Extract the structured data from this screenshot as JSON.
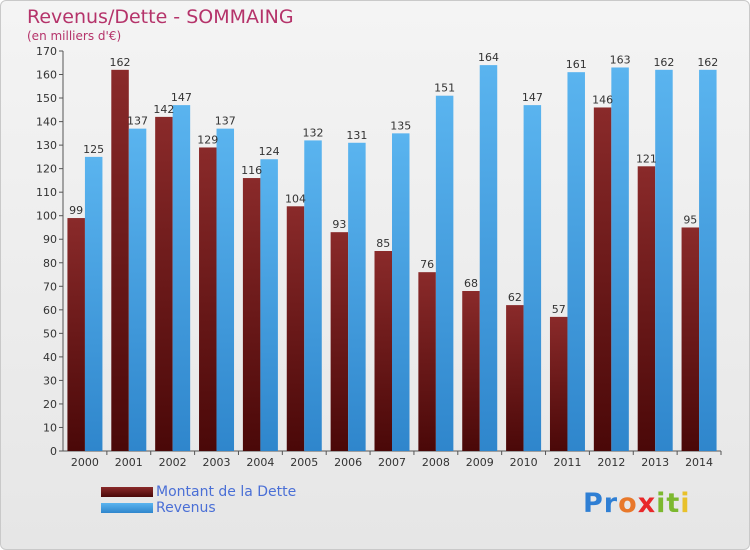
{
  "colors": {
    "title": "#b5336a",
    "axis": "#555555",
    "dette": "#7a1f1f",
    "revenus": "#49a6e8"
  },
  "chart_data": {
    "type": "bar",
    "title": "Revenus/Dette - SOMMAING",
    "subtitle": "(en milliers d'€)",
    "xlabel": "",
    "ylabel": "",
    "ylim": [
      0,
      170
    ],
    "yticks": [
      0,
      10,
      20,
      30,
      40,
      50,
      60,
      70,
      80,
      90,
      100,
      110,
      120,
      130,
      140,
      150,
      160,
      170
    ],
    "grid": false,
    "legend_position": "bottom-left",
    "categories": [
      "2000",
      "2001",
      "2002",
      "2003",
      "2004",
      "2005",
      "2006",
      "2007",
      "2008",
      "2009",
      "2010",
      "2011",
      "2012",
      "2013",
      "2014"
    ],
    "series": [
      {
        "name": "Montant de la Dette",
        "color": "#7a1f1f",
        "values": [
          99,
          162,
          142,
          129,
          116,
          104,
          93,
          85,
          76,
          68,
          62,
          57,
          146,
          121,
          95
        ]
      },
      {
        "name": "Revenus",
        "color": "#49a6e8",
        "values": [
          125,
          137,
          147,
          137,
          124,
          132,
          131,
          135,
          151,
          164,
          147,
          161,
          163,
          162,
          162
        ]
      }
    ]
  },
  "logo": {
    "letters": [
      "P",
      "r",
      "o",
      "x",
      "i",
      "t",
      "i"
    ],
    "colors": [
      "#2f7fd4",
      "#2f7fd4",
      "#e8782a",
      "#e8282a",
      "#7cb82f",
      "#7cb82f",
      "#e8c12a"
    ]
  }
}
